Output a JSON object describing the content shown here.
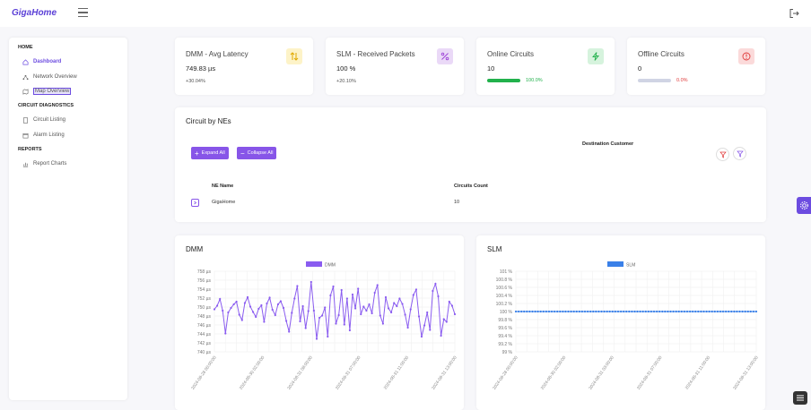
{
  "app": {
    "logo": "GigaHome"
  },
  "sidebar": {
    "sections": [
      {
        "title": "HOME"
      },
      {
        "title": "CIRCUIT DIAGNOSTICS"
      },
      {
        "title": "REPORTS"
      }
    ],
    "items": [
      {
        "label": "Dashboard",
        "icon": "home-icon"
      },
      {
        "label": "Network Overview",
        "icon": "network-icon"
      },
      {
        "label": "Map Overview",
        "icon": "map-icon"
      },
      {
        "label": "Circuit Listing",
        "icon": "document-icon"
      },
      {
        "label": "Alarm Listing",
        "icon": "calendar-icon"
      },
      {
        "label": "Report Charts",
        "icon": "bar-chart-icon"
      }
    ]
  },
  "kpis": [
    {
      "title": "DMM - Avg Latency",
      "value": "749.83 µs",
      "sub": "+30.04%",
      "icon": "swap-vertical-icon",
      "color": "#f5c518",
      "bg": "#fdf3c8"
    },
    {
      "title": "SLM - Received Packets",
      "value": "100 %",
      "sub": "+20.10%",
      "icon": "percent-icon",
      "color": "#9b3fd6",
      "bg": "#ead9f7"
    },
    {
      "title": "Online Circuits",
      "value": "10",
      "pct": "100.0%",
      "pct_value": 100,
      "icon": "lightning-icon",
      "color": "#22b14c",
      "bg": "#d6f3dd"
    },
    {
      "title": "Offline Circuits",
      "value": "0",
      "pct": "0.0%",
      "pct_value": 0,
      "icon": "alert-icon",
      "color": "#e03b3b",
      "bg": "#fbdada"
    }
  ],
  "circuits": {
    "title": "Circuit by NEs",
    "expand_label": "Expand All",
    "collapse_label": "Collapse All",
    "destination_label": "Destination Customer",
    "columns": [
      "NE Name",
      "Circuits Count"
    ],
    "rows": [
      {
        "ne": "GigaHome",
        "count": "10"
      }
    ]
  },
  "chart_data": [
    {
      "type": "line",
      "title": "DMM",
      "series": [
        {
          "name": "DMM",
          "color": "#8a5cf0"
        }
      ],
      "yticks": [
        "758 µs",
        "756 µs",
        "754 µs",
        "752 µs",
        "750 µs",
        "748 µs",
        "746 µs",
        "744 µs",
        "742 µs",
        "740 µs"
      ],
      "ylim": [
        740,
        758
      ],
      "xticks": [
        "2024-08-28 00:00:00",
        "2024-08-30 02:00:00",
        "2024-08-31 08:00:00",
        "2024-08-31 07:00:00",
        "2024-08-31 11:00:00",
        "2024-08-31 13:00:00"
      ],
      "values": [
        749.5,
        750.3,
        751.8,
        749.2,
        744.1,
        748.8,
        749.8,
        750.6,
        751.2,
        748.3,
        747.1,
        750.9,
        752.2,
        750.1,
        748.9,
        747.8,
        749.6,
        750.4,
        746.7,
        750.8,
        752.1,
        749.4,
        748.2,
        750.6,
        751.3,
        749.8,
        746.9,
        744.5,
        748.7,
        751.9,
        754.7,
        746.8,
        750.2,
        745.3,
        749.1,
        755.6,
        749.2,
        742.9,
        747.6,
        748.1,
        749.9,
        743.4,
        752.6,
        754.6,
        746.3,
        748.2,
        753.8,
        746.1,
        751.9,
        744.8,
        752.8,
        749.7,
        754.1,
        748.4,
        750.1,
        749.2,
        750.6,
        748.6,
        753.2,
        754.9,
        748.1,
        746.3,
        752.2,
        749.7,
        748.8,
        750.9,
        750.2,
        751.9,
        750.7,
        748.3,
        745.4,
        749.5,
        752.7,
        753.9,
        747.9,
        743.4,
        745.9,
        748.8,
        744.9,
        753.6,
        755.2,
        752.4,
        743.6,
        747.3,
        746.7,
        751.2,
        750.3,
        748.4
      ]
    },
    {
      "type": "line",
      "title": "SLM",
      "series": [
        {
          "name": "SLM",
          "color": "#3a80e8"
        }
      ],
      "yticks": [
        "101 %",
        "100.8 %",
        "100.6 %",
        "100.4 %",
        "100.2 %",
        "100 %",
        "99.8 %",
        "99.6 %",
        "99.4 %",
        "99.2 %",
        "99 %"
      ],
      "ylim": [
        99,
        101
      ],
      "xticks": [
        "2024-08-28 00:00:00",
        "2024-08-30 02:00:00",
        "2024-08-31 03:00:00",
        "2024-08-31 07:00:00",
        "2024-08-31 11:00:00",
        "2024-08-31 13:00:00"
      ],
      "constant_value": 100,
      "point_count": 88
    }
  ]
}
